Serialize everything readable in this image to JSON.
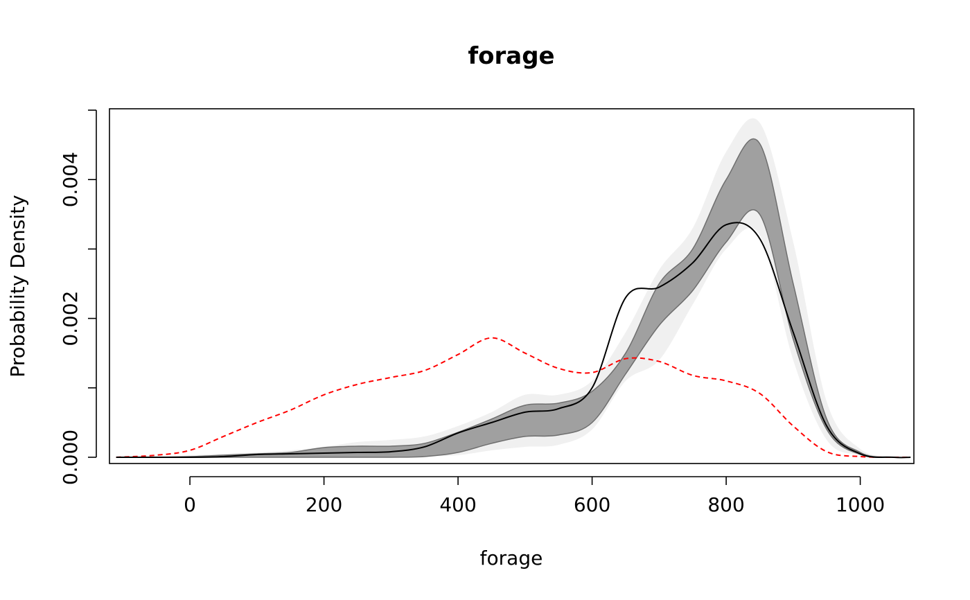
{
  "chart_data": {
    "type": "area",
    "title": "forage",
    "xlabel": "forage",
    "ylabel": "Probability Density",
    "xlim": [
      -120,
      1080
    ],
    "ylim": [
      -9e-05,
      0.00502
    ],
    "x_ticks": [
      0,
      200,
      400,
      600,
      800,
      1000
    ],
    "x_tick_labels": [
      "0",
      "200",
      "400",
      "600",
      "800",
      "1000"
    ],
    "y_ticks": [
      0.0,
      0.001,
      0.002,
      0.003,
      0.004,
      0.005
    ],
    "y_tick_labels": [
      "0.000",
      "",
      "0.002",
      "",
      "0.004",
      ""
    ],
    "grid": false,
    "colors": {
      "outer_band": "#f0f0f0",
      "inner_band": "#a0a0a0",
      "inner_band_edge": "#6e6e6e",
      "observed_line": "#000000",
      "reference_line": "#ff0000"
    },
    "x": [
      -110,
      -50,
      0,
      50,
      100,
      150,
      200,
      250,
      300,
      350,
      400,
      450,
      500,
      550,
      600,
      650,
      700,
      750,
      800,
      850,
      900,
      950,
      1000,
      1050,
      1075
    ],
    "series": [
      {
        "role": "outer_band",
        "upper": [
          0,
          1e-05,
          3e-05,
          5e-05,
          7e-05,
          0.0001,
          0.00015,
          0.00022,
          0.00025,
          0.0003,
          0.00045,
          0.00065,
          0.0009,
          0.0009,
          0.0011,
          0.0018,
          0.0027,
          0.0033,
          0.0044,
          0.00482,
          0.0031,
          0.0008,
          0.00012,
          1e-05,
          0
        ],
        "lower": [
          0,
          0,
          0,
          0,
          0,
          0,
          0,
          0,
          0,
          1e-05,
          3e-05,
          0.0001,
          0.00015,
          0.00018,
          0.0004,
          0.0011,
          0.0014,
          0.0022,
          0.003,
          0.0032,
          0.0014,
          0.00025,
          3e-05,
          0,
          0
        ]
      },
      {
        "role": "inner_band",
        "upper": [
          0,
          0,
          1e-05,
          3e-05,
          5e-05,
          7e-05,
          0.00014,
          0.00016,
          0.00016,
          0.0002,
          0.00036,
          0.00055,
          0.00075,
          0.00078,
          0.00095,
          0.0015,
          0.0025,
          0.003,
          0.004,
          0.00452,
          0.0025,
          0.00055,
          7e-05,
          0,
          0
        ],
        "lower": [
          0,
          0,
          0,
          0,
          0,
          0,
          0,
          0,
          0,
          1e-05,
          7e-05,
          0.0002,
          0.0003,
          0.00032,
          0.0005,
          0.0012,
          0.0019,
          0.0024,
          0.0031,
          0.0035,
          0.0017,
          0.0004,
          4e-05,
          0,
          0
        ]
      },
      {
        "role": "observed_line",
        "y": [
          0,
          0,
          0,
          1e-05,
          4e-05,
          5e-05,
          6e-05,
          7e-05,
          8e-05,
          0.00015,
          0.00035,
          0.0005,
          0.00065,
          0.0007,
          0.001,
          0.0023,
          0.00245,
          0.0028,
          0.00335,
          0.00315,
          0.0018,
          0.00045,
          5e-05,
          0,
          0
        ]
      },
      {
        "role": "reference_line",
        "y": [
          0,
          3e-05,
          0.0001,
          0.0003,
          0.0005,
          0.00068,
          0.0009,
          0.00105,
          0.00115,
          0.00125,
          0.00148,
          0.00172,
          0.0015,
          0.00128,
          0.00122,
          0.00142,
          0.00138,
          0.00118,
          0.0011,
          0.00092,
          0.00045,
          8e-05,
          1e-05,
          0,
          0
        ]
      }
    ]
  }
}
